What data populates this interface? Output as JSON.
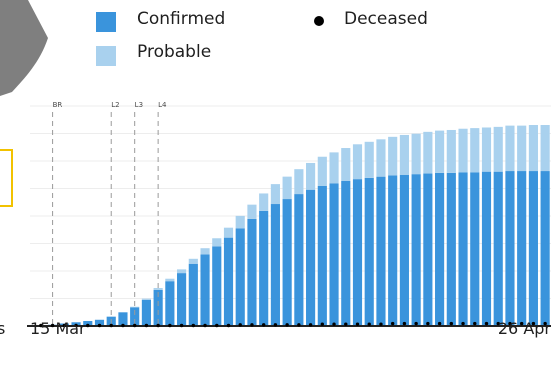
{
  "chart_data": {
    "type": "bar",
    "stacked": true,
    "x_start": "15 Mar",
    "x_end": "26 Apr",
    "xtick_labels": [
      "15 Mar",
      "26 Apr"
    ],
    "series": [
      {
        "name": "Confirmed",
        "color": "#3a94dc",
        "values": [
          1,
          2,
          4,
          6,
          8,
          10,
          15,
          22,
          30,
          42,
          58,
          72,
          85,
          100,
          115,
          128,
          142,
          157,
          172,
          185,
          196,
          204,
          212,
          219,
          225,
          229,
          233,
          236,
          238,
          240,
          242,
          243,
          244,
          245,
          246,
          246,
          247,
          247,
          248,
          248,
          249,
          249,
          249,
          249
        ]
      },
      {
        "name": "Probable",
        "color": "#a9d1ee",
        "values": [
          0,
          0,
          0,
          0,
          0,
          0,
          0,
          0,
          1,
          2,
          3,
          4,
          6,
          8,
          10,
          13,
          16,
          20,
          23,
          28,
          32,
          36,
          40,
          43,
          47,
          50,
          53,
          56,
          58,
          60,
          62,
          64,
          65,
          67,
          68,
          69,
          70,
          71,
          71,
          72,
          73,
          73,
          74,
          74
        ]
      },
      {
        "name": "Deceased",
        "color": "#000000",
        "values": [
          0,
          0,
          0,
          0,
          0,
          0,
          0,
          0,
          0,
          0,
          0,
          0,
          0,
          0,
          0,
          0,
          0,
          1,
          1,
          1,
          1,
          1,
          1,
          1,
          2,
          2,
          2,
          2,
          2,
          2,
          3,
          3,
          3,
          3,
          3,
          3,
          3,
          3,
          3,
          3,
          3,
          3,
          3,
          3
        ]
      }
    ],
    "annotations": [
      {
        "label": "BR",
        "index": 1.5
      },
      {
        "label": "L2",
        "index": 6.5
      },
      {
        "label": "L3",
        "index": 8.5
      },
      {
        "label": "L4",
        "index": 10.5
      }
    ],
    "grid": true,
    "legend_position": "top"
  },
  "edge_text": "s"
}
